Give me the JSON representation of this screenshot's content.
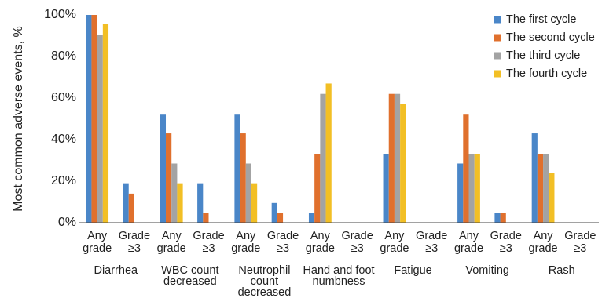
{
  "chart_data": {
    "type": "bar",
    "ylabel": "Most common adverse events, %",
    "ylim": [
      0,
      100
    ],
    "yticks": [
      0,
      20,
      40,
      60,
      80,
      100
    ],
    "ytick_labels": [
      "0%",
      "20%",
      "40%",
      "60%",
      "80%",
      "100%"
    ],
    "groups": [
      {
        "label_lines": [
          "Diarrhea"
        ]
      },
      {
        "label_lines": [
          "WBC count",
          "decreased"
        ]
      },
      {
        "label_lines": [
          "Neutrophil",
          "count",
          "decreased"
        ]
      },
      {
        "label_lines": [
          "Hand and foot",
          "numbness"
        ]
      },
      {
        "label_lines": [
          "Fatigue"
        ]
      },
      {
        "label_lines": [
          "Vomiting"
        ]
      },
      {
        "label_lines": [
          "Rash"
        ]
      }
    ],
    "subcategory_lines": [
      [
        "Any",
        "grade"
      ],
      [
        "Grade",
        "≥3"
      ]
    ],
    "legend_position": "top-right",
    "series": [
      {
        "name": "The first cycle",
        "color": "#4a86c8",
        "values": [
          100,
          19,
          52,
          19,
          52,
          9.5,
          4.8,
          0,
          33,
          0,
          28.5,
          4.8,
          43,
          0
        ]
      },
      {
        "name": "The second cycle",
        "color": "#e0702d",
        "values": [
          100,
          14,
          43,
          4.8,
          43,
          4.8,
          33,
          0,
          62,
          0,
          52,
          4.8,
          33,
          0
        ]
      },
      {
        "name": "The third cycle",
        "color": "#a3a3a3",
        "values": [
          90.5,
          0,
          28.5,
          0,
          28.5,
          0,
          62,
          0,
          62,
          0,
          33,
          0,
          33,
          0
        ]
      },
      {
        "name": "The fourth cycle",
        "color": "#f2bf25",
        "values": [
          95.5,
          0,
          19,
          0,
          19,
          0,
          67,
          0,
          57,
          0,
          33,
          0,
          24,
          0
        ]
      }
    ]
  }
}
